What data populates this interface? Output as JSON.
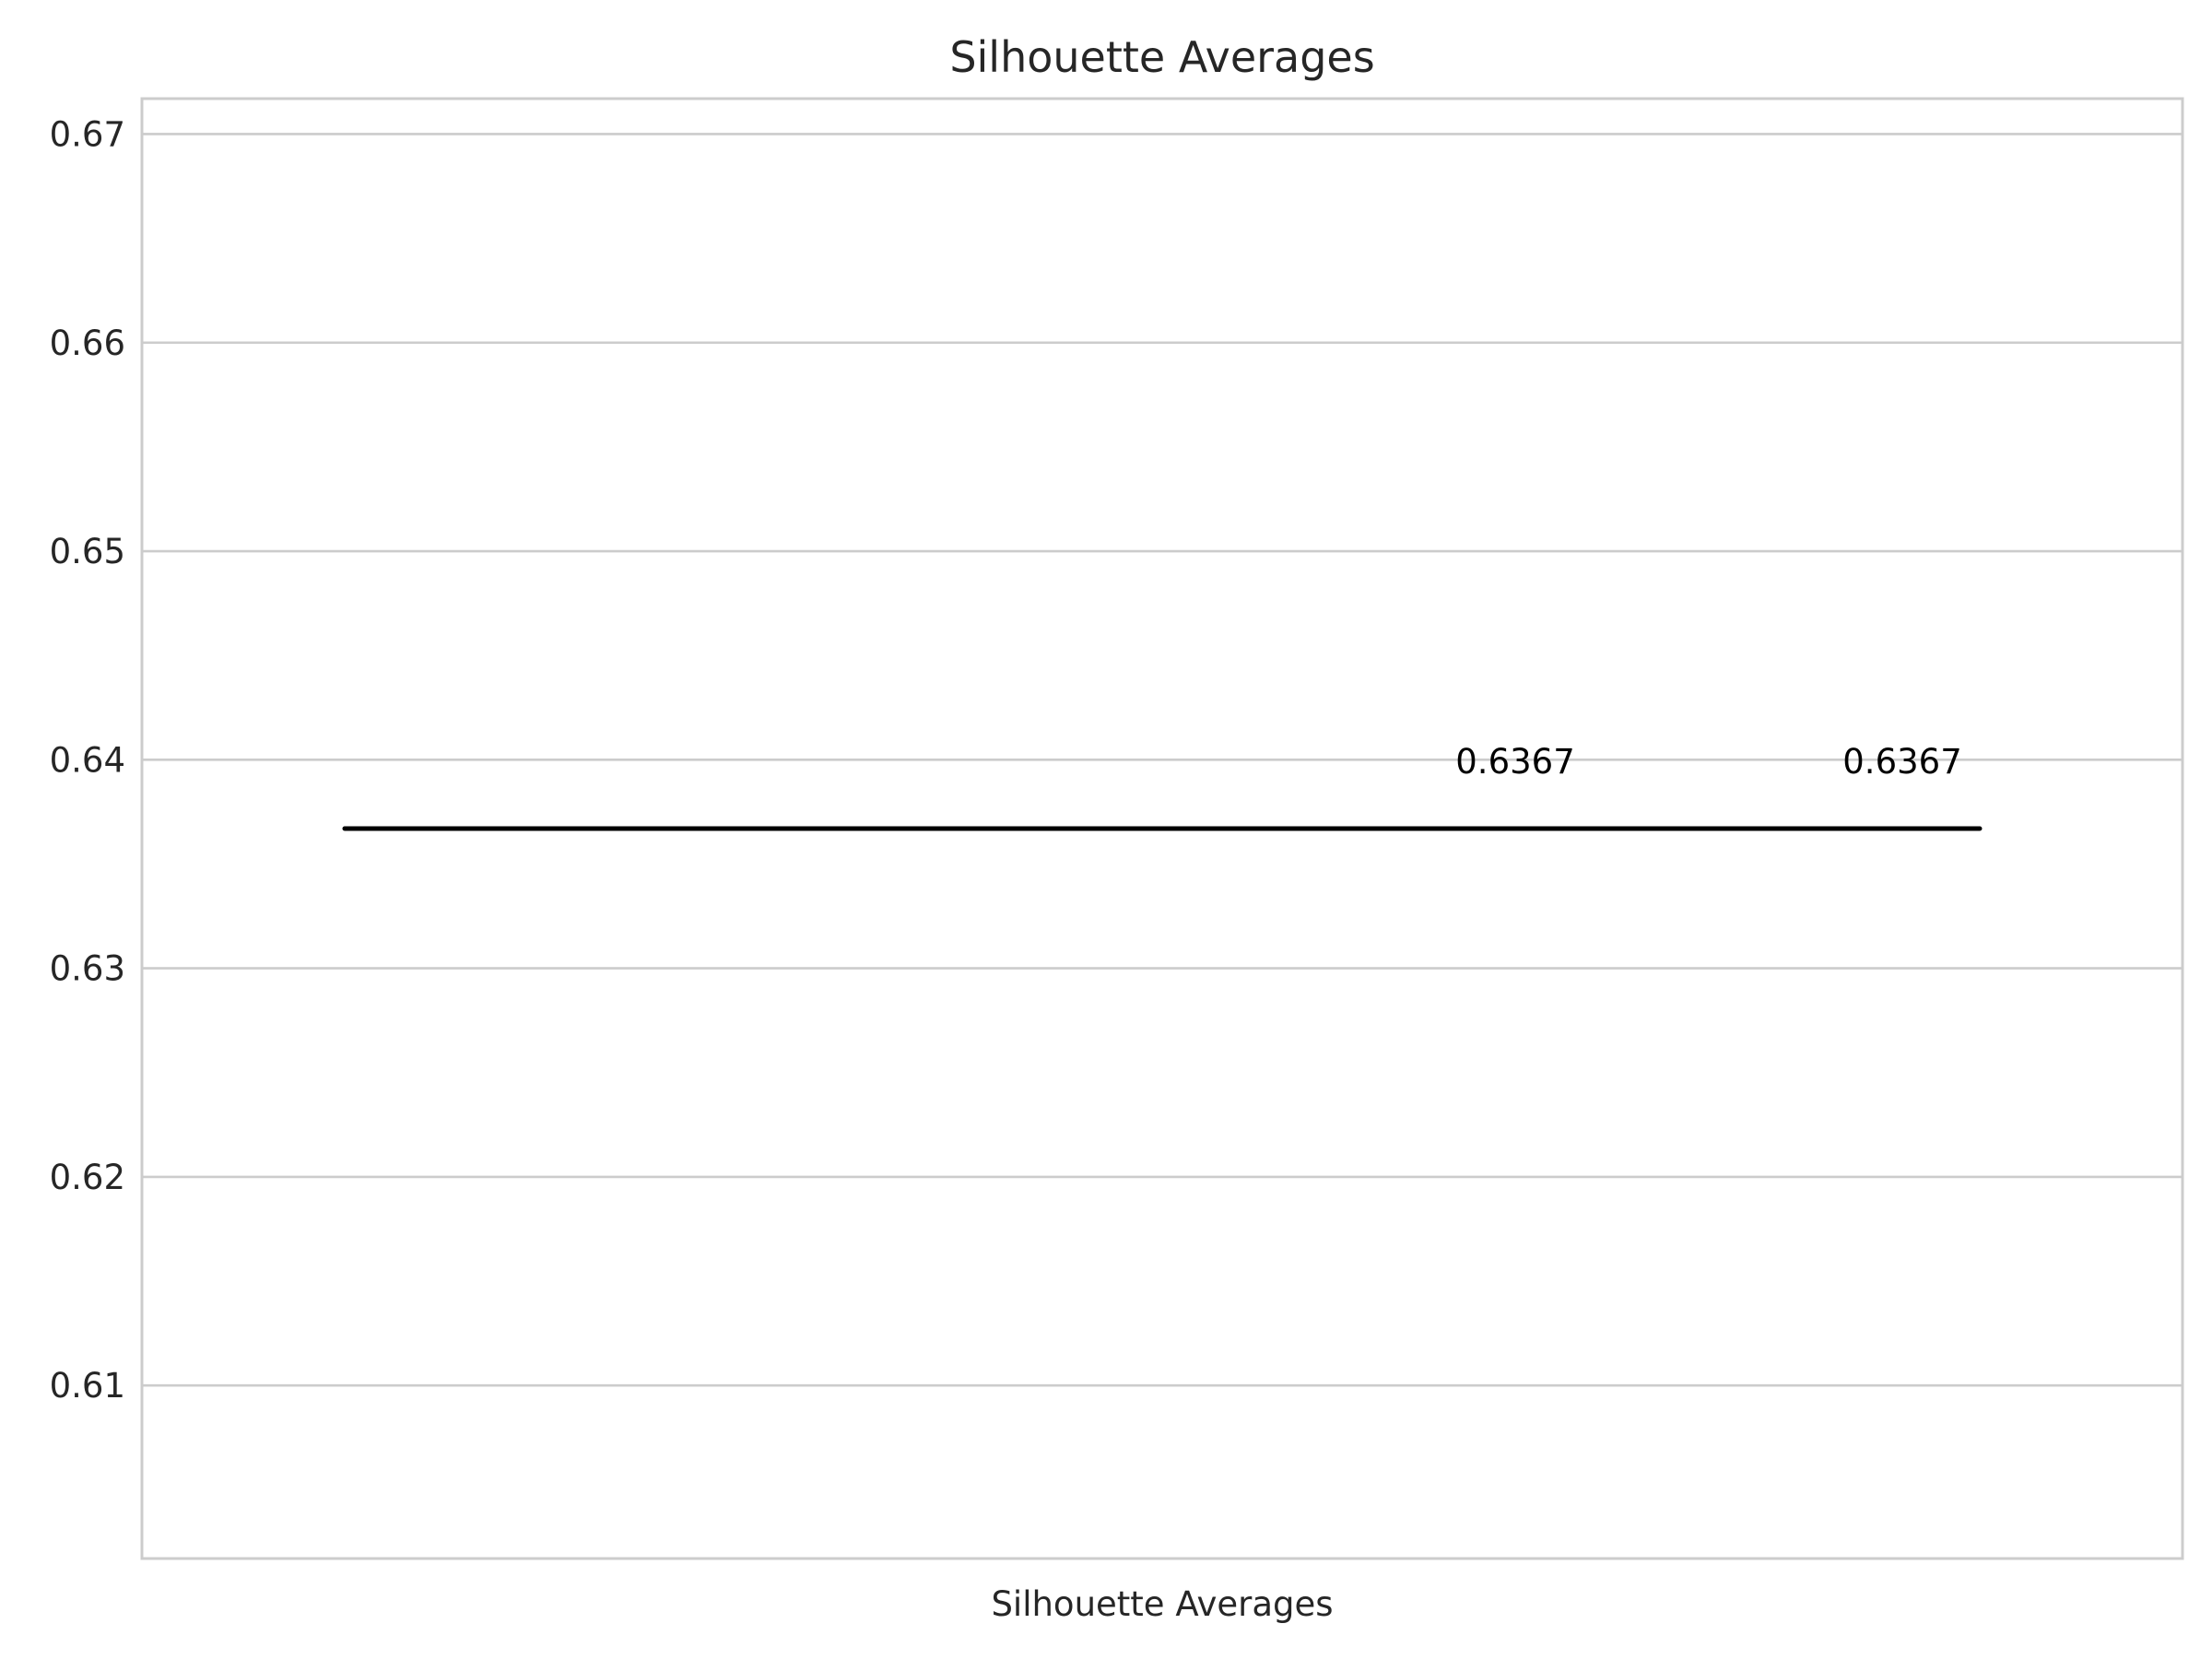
{
  "chart_data": {
    "type": "line",
    "title": "Silhouette Averages",
    "xlabel": "",
    "ylabel": "",
    "x_tick_labels": [
      "Silhouette Averages"
    ],
    "ylim": [
      0.6017,
      0.6717
    ],
    "yticks": [
      0.61,
      0.62,
      0.63,
      0.64,
      0.65,
      0.66,
      0.67
    ],
    "ytick_labels": [
      "0.61",
      "0.62",
      "0.63",
      "0.64",
      "0.65",
      "0.66",
      "0.67"
    ],
    "grid": true,
    "series": [
      {
        "values": [
          0.6367,
          0.6367
        ],
        "color": "#000000"
      }
    ],
    "data_labels": [
      "0.6367",
      "0.6367"
    ]
  },
  "colors": {
    "grid": "#cccccc",
    "frame": "#cccccc",
    "line": "#000000",
    "text": "#262626"
  }
}
